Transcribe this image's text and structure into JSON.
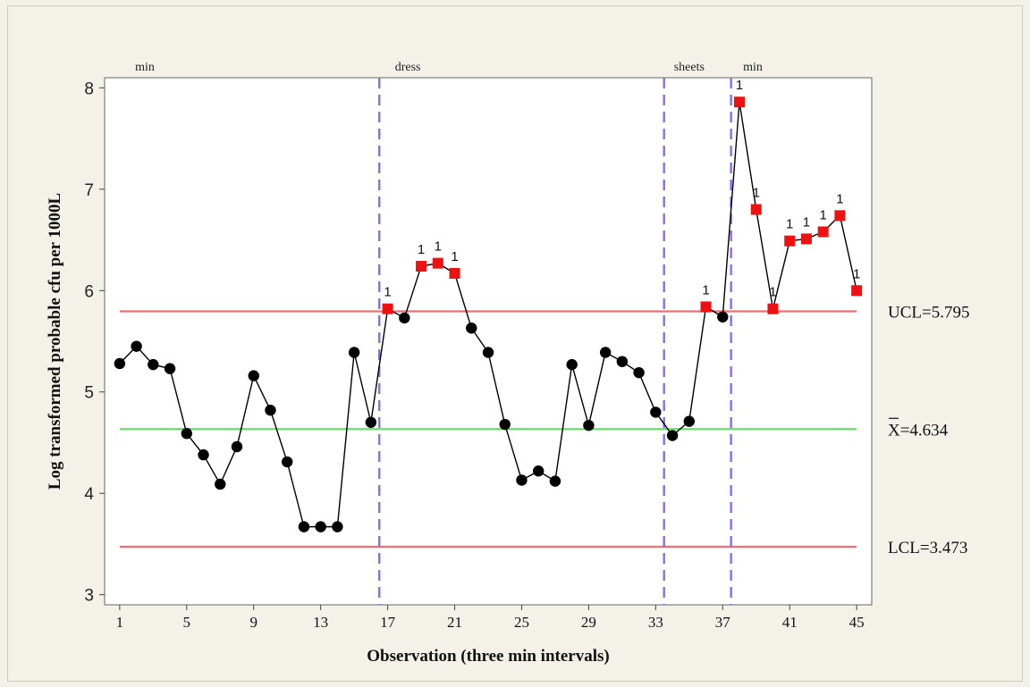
{
  "chart_data": {
    "type": "line",
    "title": "",
    "xlabel": "Observation (three min intervals)",
    "ylabel": "Log transformed probable cfu per 1000L",
    "xlim": [
      0.1,
      45.9
    ],
    "ylim": [
      2.9,
      8.1
    ],
    "x_ticks": [
      1,
      5,
      9,
      13,
      17,
      21,
      25,
      29,
      33,
      37,
      41,
      45
    ],
    "y_ticks": [
      3,
      4,
      5,
      6,
      7,
      8
    ],
    "grid": false,
    "x": [
      1,
      2,
      3,
      4,
      5,
      6,
      7,
      8,
      9,
      10,
      11,
      12,
      13,
      14,
      15,
      16,
      17,
      18,
      19,
      20,
      21,
      22,
      23,
      24,
      25,
      26,
      27,
      28,
      29,
      30,
      31,
      32,
      33,
      34,
      35,
      36,
      37,
      38,
      39,
      40,
      41,
      42,
      43,
      44,
      45
    ],
    "series": [
      {
        "values": [
          5.28,
          5.45,
          5.27,
          5.23,
          4.59,
          4.38,
          4.09,
          4.46,
          5.16,
          4.82,
          4.31,
          3.67,
          3.67,
          3.67,
          5.39,
          4.7,
          5.82,
          5.73,
          6.24,
          6.27,
          6.17,
          5.63,
          5.39,
          4.68,
          4.13,
          4.22,
          4.12,
          5.27,
          4.67,
          5.39,
          5.3,
          5.19,
          4.8,
          4.57,
          4.71,
          5.84,
          5.74,
          7.86,
          6.8,
          5.82,
          6.49,
          6.51,
          6.58,
          6.74,
          6.0
        ],
        "out_of_control_points": [
          17,
          19,
          20,
          21,
          36,
          38,
          39,
          40,
          41,
          42,
          43,
          44,
          45
        ],
        "out_of_control_flag": "1"
      }
    ],
    "colors": {
      "in_control_marker": "#000000",
      "out_of_control_marker": "#ee1111",
      "control_limits": "#ef6f72",
      "center_line": "#66e066",
      "phase_dividers": "#8a6cf0"
    },
    "control_limits": {
      "ucl": {
        "value": 5.795,
        "label": "UCL=5.795"
      },
      "center": {
        "value": 4.634,
        "label": "X=4.634"
      },
      "lcl": {
        "value": 3.473,
        "label": "LCL=3.473"
      }
    },
    "phase_dividers": [
      16.5,
      33.5,
      37.5
    ],
    "phase_labels": [
      {
        "x": 2.5,
        "text": "min"
      },
      {
        "x": 18.2,
        "text": "dress"
      },
      {
        "x": 35.0,
        "text": "sheets"
      },
      {
        "x": 38.8,
        "text": "min"
      }
    ]
  }
}
